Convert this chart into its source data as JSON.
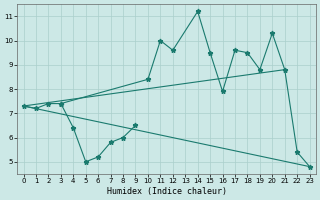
{
  "xlabel": "Humidex (Indice chaleur)",
  "background_color": "#cce8e6",
  "grid_color": "#aacfcc",
  "line_color": "#1a7a6e",
  "ylim": [
    4.5,
    11.5
  ],
  "xlim": [
    -0.5,
    23.5
  ],
  "yticks": [
    5,
    6,
    7,
    8,
    9,
    10,
    11
  ],
  "xticks": [
    0,
    1,
    2,
    3,
    4,
    5,
    6,
    7,
    8,
    9,
    10,
    11,
    12,
    13,
    14,
    15,
    16,
    17,
    18,
    19,
    20,
    21,
    22,
    23
  ],
  "series_zigzag_upper": {
    "x": [
      0,
      1,
      2,
      3,
      10,
      11,
      12,
      14,
      15,
      16,
      17,
      18,
      19,
      20,
      21,
      22,
      23
    ],
    "y": [
      7.3,
      7.2,
      7.4,
      7.4,
      8.4,
      10.0,
      9.6,
      11.2,
      9.5,
      7.9,
      9.6,
      9.5,
      8.8,
      10.3,
      8.8,
      5.4,
      4.8
    ]
  },
  "series_straight_diagonal": {
    "x": [
      0,
      23
    ],
    "y": [
      7.3,
      4.8
    ]
  },
  "series_straight_upper": {
    "x": [
      0,
      21
    ],
    "y": [
      7.3,
      8.8
    ]
  },
  "series_lower_bumps": {
    "x": [
      3,
      4,
      5,
      6,
      7,
      8,
      9
    ],
    "y": [
      7.4,
      6.4,
      5.0,
      5.2,
      5.8,
      6.0,
      6.5
    ]
  }
}
